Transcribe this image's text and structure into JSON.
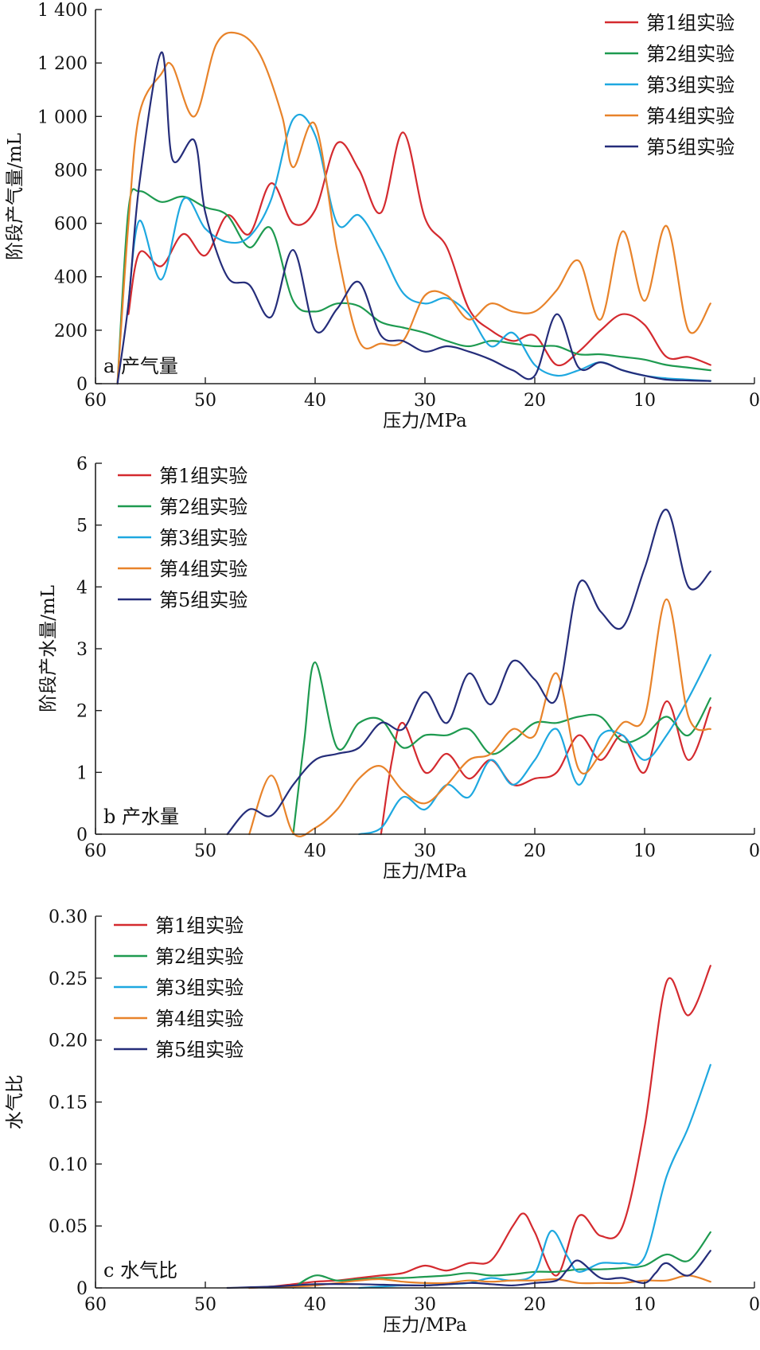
{
  "colors": {
    "series1": "#d42a2f",
    "series2": "#1e9a50",
    "series3": "#1ea8e0",
    "series4": "#e8832a",
    "series5": "#252d7a"
  },
  "chart_data": [
    {
      "type": "line",
      "panel_label": "a 产气量",
      "xlabel": "压力/MPa",
      "ylabel": "阶段产气量/mL",
      "xlim": [
        60,
        0
      ],
      "ylim": [
        0,
        1400
      ],
      "xticks": [
        60,
        50,
        40,
        30,
        20,
        10,
        0
      ],
      "yticks": [
        0,
        200,
        400,
        600,
        800,
        1000,
        1200,
        1400
      ],
      "ytick_labels": [
        "0",
        "200",
        "400",
        "600",
        "800",
        "1 000",
        "1 200",
        "1 400"
      ],
      "legend": "top-right",
      "series": [
        {
          "name": "第1组实验",
          "x": [
            57,
            56,
            54,
            52,
            50,
            48,
            46,
            44,
            42,
            40,
            38,
            36,
            34,
            32,
            30,
            28,
            26,
            24,
            22,
            20,
            18,
            16,
            14,
            12,
            10,
            8,
            6,
            4
          ],
          "y": [
            260,
            490,
            440,
            560,
            480,
            630,
            560,
            750,
            600,
            650,
            900,
            800,
            640,
            940,
            620,
            510,
            280,
            200,
            160,
            180,
            70,
            120,
            200,
            260,
            220,
            100,
            100,
            70
          ]
        },
        {
          "name": "第2组实验",
          "x": [
            58,
            57,
            56,
            54,
            52,
            50,
            48,
            46,
            44,
            42,
            40,
            38,
            36,
            34,
            32,
            30,
            28,
            26,
            24,
            22,
            20,
            18,
            16,
            14,
            12,
            10,
            8,
            6,
            4
          ],
          "y": [
            0,
            650,
            720,
            680,
            700,
            660,
            630,
            510,
            580,
            310,
            270,
            300,
            290,
            230,
            210,
            190,
            160,
            140,
            160,
            150,
            140,
            140,
            110,
            110,
            100,
            90,
            70,
            60,
            50
          ]
        },
        {
          "name": "第3组实验",
          "x": [
            57,
            56,
            54,
            52,
            50,
            48,
            46,
            44,
            42,
            40,
            38,
            36,
            34,
            32,
            30,
            28,
            26,
            24,
            22,
            20,
            18,
            16,
            14,
            12,
            10,
            8,
            6,
            4
          ],
          "y": [
            300,
            610,
            390,
            690,
            580,
            530,
            550,
            690,
            990,
            930,
            600,
            630,
            500,
            340,
            300,
            320,
            260,
            140,
            190,
            70,
            30,
            50,
            80,
            50,
            30,
            20,
            15,
            10
          ]
        },
        {
          "name": "第4组实验",
          "x": [
            58,
            57,
            56,
            54,
            53,
            51,
            49,
            47,
            45,
            43,
            42,
            40,
            38,
            36,
            34,
            32,
            30,
            28,
            26,
            24,
            22,
            20,
            18,
            16,
            14,
            12,
            10,
            8,
            6,
            4
          ],
          "y": [
            0,
            600,
            1010,
            1160,
            1190,
            1000,
            1270,
            1310,
            1230,
            1000,
            810,
            970,
            500,
            160,
            150,
            160,
            330,
            330,
            240,
            300,
            270,
            270,
            350,
            460,
            240,
            570,
            310,
            590,
            200,
            300
          ]
        },
        {
          "name": "第5组实验",
          "x": [
            58,
            57,
            56,
            54,
            53,
            51,
            50,
            48,
            46,
            44,
            42,
            40,
            38,
            36,
            34,
            32,
            30,
            28,
            26,
            24,
            22,
            20,
            18,
            16,
            14,
            12,
            10,
            8,
            6,
            4
          ],
          "y": [
            0,
            300,
            750,
            1240,
            840,
            910,
            640,
            400,
            370,
            250,
            500,
            200,
            280,
            380,
            180,
            160,
            120,
            140,
            120,
            90,
            50,
            30,
            260,
            60,
            80,
            50,
            30,
            15,
            12,
            10
          ]
        }
      ]
    },
    {
      "type": "line",
      "panel_label": "b 产水量",
      "xlabel": "压力/MPa",
      "ylabel": "阶段产水量/mL",
      "xlim": [
        60,
        0
      ],
      "ylim": [
        0,
        6
      ],
      "xticks": [
        60,
        50,
        40,
        30,
        20,
        10,
        0
      ],
      "yticks": [
        0,
        1,
        2,
        3,
        4,
        5,
        6
      ],
      "ytick_labels": [
        "0",
        "1",
        "2",
        "3",
        "4",
        "5",
        "6"
      ],
      "legend": "top-left",
      "series": [
        {
          "name": "第1组实验",
          "x": [
            34,
            33,
            32,
            30,
            28,
            26,
            24,
            22,
            20,
            18,
            16,
            14,
            12,
            10,
            8,
            6,
            4
          ],
          "y": [
            0,
            1.2,
            1.8,
            1.0,
            1.3,
            0.9,
            1.2,
            0.8,
            0.9,
            1.0,
            1.6,
            1.2,
            1.6,
            1.0,
            2.15,
            1.2,
            2.05
          ]
        },
        {
          "name": "第2组实验",
          "x": [
            42,
            41,
            40,
            38,
            36,
            34,
            32,
            30,
            28,
            26,
            24,
            22,
            20,
            18,
            16,
            14,
            12,
            10,
            8,
            6,
            4
          ],
          "y": [
            0,
            1.5,
            2.78,
            1.4,
            1.8,
            1.85,
            1.4,
            1.6,
            1.6,
            1.7,
            1.3,
            1.5,
            1.8,
            1.8,
            1.9,
            1.9,
            1.5,
            1.6,
            1.9,
            1.6,
            2.2
          ]
        },
        {
          "name": "第3组实验",
          "x": [
            36,
            34,
            32,
            30,
            28,
            26,
            24,
            22,
            20,
            18,
            16,
            14,
            12,
            10,
            8,
            6,
            4
          ],
          "y": [
            0,
            0.1,
            0.6,
            0.4,
            0.8,
            0.6,
            1.2,
            0.8,
            1.2,
            1.7,
            0.8,
            1.6,
            1.6,
            1.2,
            1.6,
            2.2,
            2.9
          ]
        },
        {
          "name": "第4组实验",
          "x": [
            46,
            44,
            42,
            40,
            38,
            36,
            34,
            32,
            30,
            28,
            26,
            24,
            22,
            20,
            18,
            16,
            14,
            12,
            10,
            8,
            6,
            4
          ],
          "y": [
            0,
            0.95,
            0.02,
            0.1,
            0.4,
            0.9,
            1.1,
            0.7,
            0.5,
            0.8,
            1.2,
            1.3,
            1.7,
            1.6,
            2.6,
            1.05,
            1.3,
            1.8,
            1.9,
            3.8,
            1.9,
            1.7
          ]
        },
        {
          "name": "第5组实验",
          "x": [
            48,
            46,
            44,
            42,
            40,
            38,
            36,
            34,
            32,
            30,
            28,
            26,
            24,
            22,
            20,
            18,
            16,
            14,
            12,
            10,
            8,
            6,
            4
          ],
          "y": [
            0,
            0.4,
            0.3,
            0.8,
            1.2,
            1.3,
            1.4,
            1.8,
            1.7,
            2.3,
            1.8,
            2.6,
            2.1,
            2.8,
            2.5,
            2.2,
            4.05,
            3.6,
            3.35,
            4.3,
            5.25,
            4.0,
            4.25
          ]
        }
      ]
    },
    {
      "type": "line",
      "panel_label": "c 水气比",
      "xlabel": "压力/MPa",
      "ylabel": "水气比",
      "xlim": [
        60,
        0
      ],
      "ylim": [
        0,
        0.3
      ],
      "xticks": [
        60,
        50,
        40,
        30,
        20,
        10,
        0
      ],
      "yticks": [
        0,
        0.05,
        0.1,
        0.15,
        0.2,
        0.25,
        0.3
      ],
      "ytick_labels": [
        "0",
        "0.05",
        "0.10",
        "0.15",
        "0.20",
        "0.25",
        "0.30"
      ],
      "legend": "top-left",
      "series": [
        {
          "name": "第1组实验",
          "x": [
            46,
            44,
            42,
            40,
            38,
            36,
            34,
            32,
            30,
            28,
            26,
            24,
            22,
            21,
            20,
            18,
            16,
            14,
            12,
            10,
            8,
            6,
            4
          ],
          "y": [
            0,
            0.001,
            0.003,
            0.005,
            0.006,
            0.008,
            0.01,
            0.012,
            0.018,
            0.014,
            0.02,
            0.022,
            0.05,
            0.06,
            0.045,
            0.01,
            0.058,
            0.042,
            0.05,
            0.13,
            0.247,
            0.22,
            0.26
          ]
        },
        {
          "name": "第2组实验",
          "x": [
            42,
            40,
            38,
            36,
            34,
            32,
            30,
            28,
            26,
            24,
            22,
            20,
            18,
            16,
            14,
            12,
            10,
            8,
            6,
            4
          ],
          "y": [
            0,
            0.01,
            0.006,
            0.007,
            0.008,
            0.008,
            0.009,
            0.01,
            0.012,
            0.01,
            0.011,
            0.013,
            0.013,
            0.015,
            0.015,
            0.016,
            0.018,
            0.027,
            0.022,
            0.045
          ]
        },
        {
          "name": "第3组实验",
          "x": [
            36,
            34,
            32,
            30,
            28,
            26,
            24,
            22,
            20,
            18.5,
            17,
            16,
            14,
            12,
            10,
            8,
            6,
            4
          ],
          "y": [
            0,
            0.001,
            0.002,
            0.002,
            0.003,
            0.004,
            0.008,
            0.006,
            0.012,
            0.046,
            0.025,
            0.013,
            0.02,
            0.02,
            0.025,
            0.09,
            0.13,
            0.18
          ]
        },
        {
          "name": "第4组实验",
          "x": [
            46,
            44,
            42,
            40,
            38,
            36,
            34,
            32,
            30,
            28,
            26,
            24,
            22,
            20,
            18,
            16,
            14,
            12,
            10,
            8,
            6,
            4
          ],
          "y": [
            0,
            0.001,
            0.001,
            0.002,
            0.004,
            0.006,
            0.007,
            0.005,
            0.004,
            0.004,
            0.006,
            0.005,
            0.006,
            0.006,
            0.007,
            0.004,
            0.004,
            0.004,
            0.006,
            0.006,
            0.01,
            0.005
          ]
        },
        {
          "name": "第5组实验",
          "x": [
            48,
            44,
            42,
            40,
            36,
            30,
            26,
            24,
            22,
            20,
            18,
            17,
            16,
            14,
            12,
            10,
            9,
            8,
            6,
            4
          ],
          "y": [
            0,
            0.001,
            0.002,
            0.003,
            0.003,
            0.002,
            0.004,
            0.003,
            0.002,
            0.004,
            0.006,
            0.015,
            0.022,
            0.008,
            0.008,
            0.004,
            0.012,
            0.02,
            0.01,
            0.03
          ]
        }
      ]
    }
  ]
}
